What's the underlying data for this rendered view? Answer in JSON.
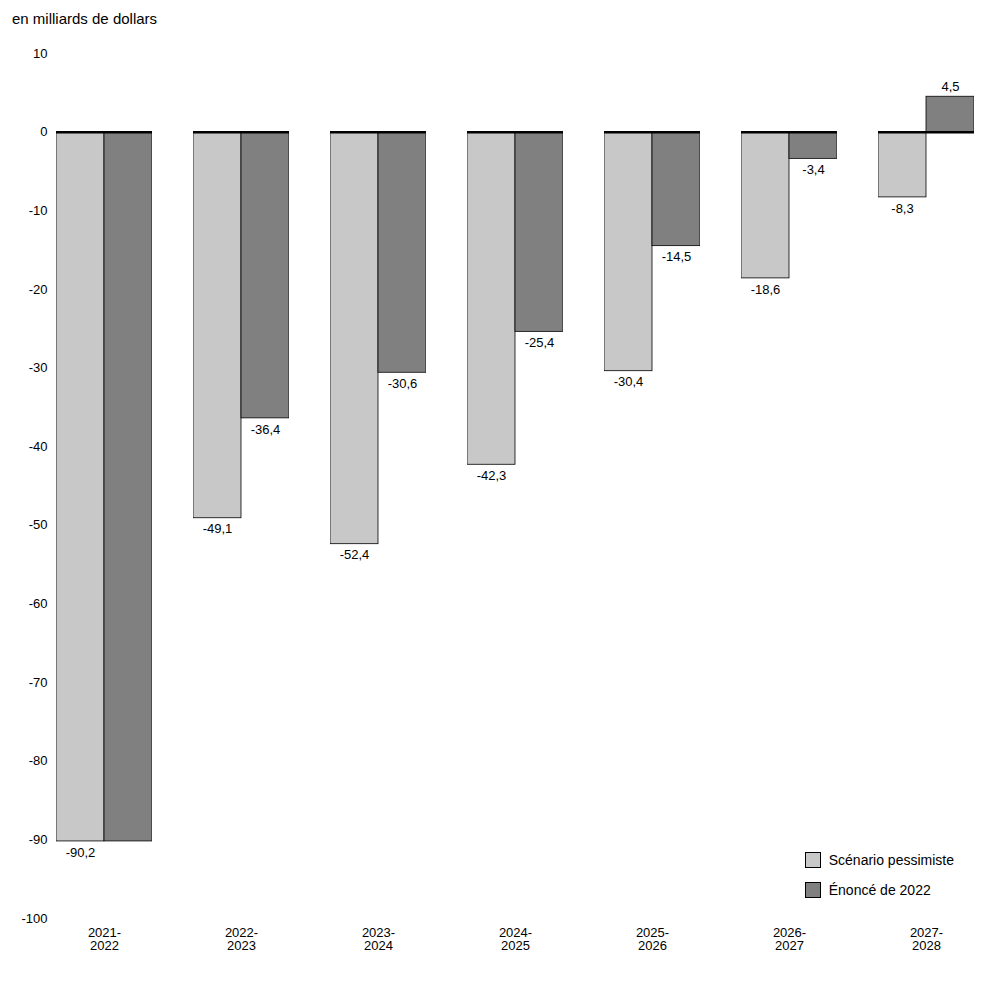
{
  "chart_data": {
    "type": "bar",
    "ylabel": "en milliards de dollars",
    "categories": [
      "2021-\n2022",
      "2022-\n2023",
      "2023-\n2024",
      "2024-\n2025",
      "2025-\n2026",
      "2026-\n2027",
      "2027-\n2028"
    ],
    "series": [
      {
        "name": "Scénario pessimiste",
        "color": "#c8c8c8",
        "values": [
          -90.2,
          -49.1,
          -52.4,
          -42.3,
          -30.4,
          -18.6,
          -8.3
        ],
        "value_labels": [
          "-90,2",
          "-49,1",
          "-52,4",
          "-42,3",
          "-30,4",
          "-18,6",
          "-8,3"
        ]
      },
      {
        "name": "Énoncé de 2022",
        "color": "#808080",
        "values": [
          -90.2,
          -36.4,
          -30.6,
          -25.4,
          -14.5,
          -3.4,
          4.5
        ],
        "value_labels": [
          null,
          "-36,4",
          "-30,6",
          "-25,4",
          "-14,5",
          "-3,4",
          "4,5"
        ]
      }
    ],
    "ylim": [
      -100,
      10
    ],
    "yticks": [
      10,
      0,
      -10,
      -20,
      -30,
      -40,
      -50,
      -60,
      -70,
      -80,
      -90,
      -100
    ],
    "grid": false,
    "legend": "lower right",
    "data_labels": true
  }
}
